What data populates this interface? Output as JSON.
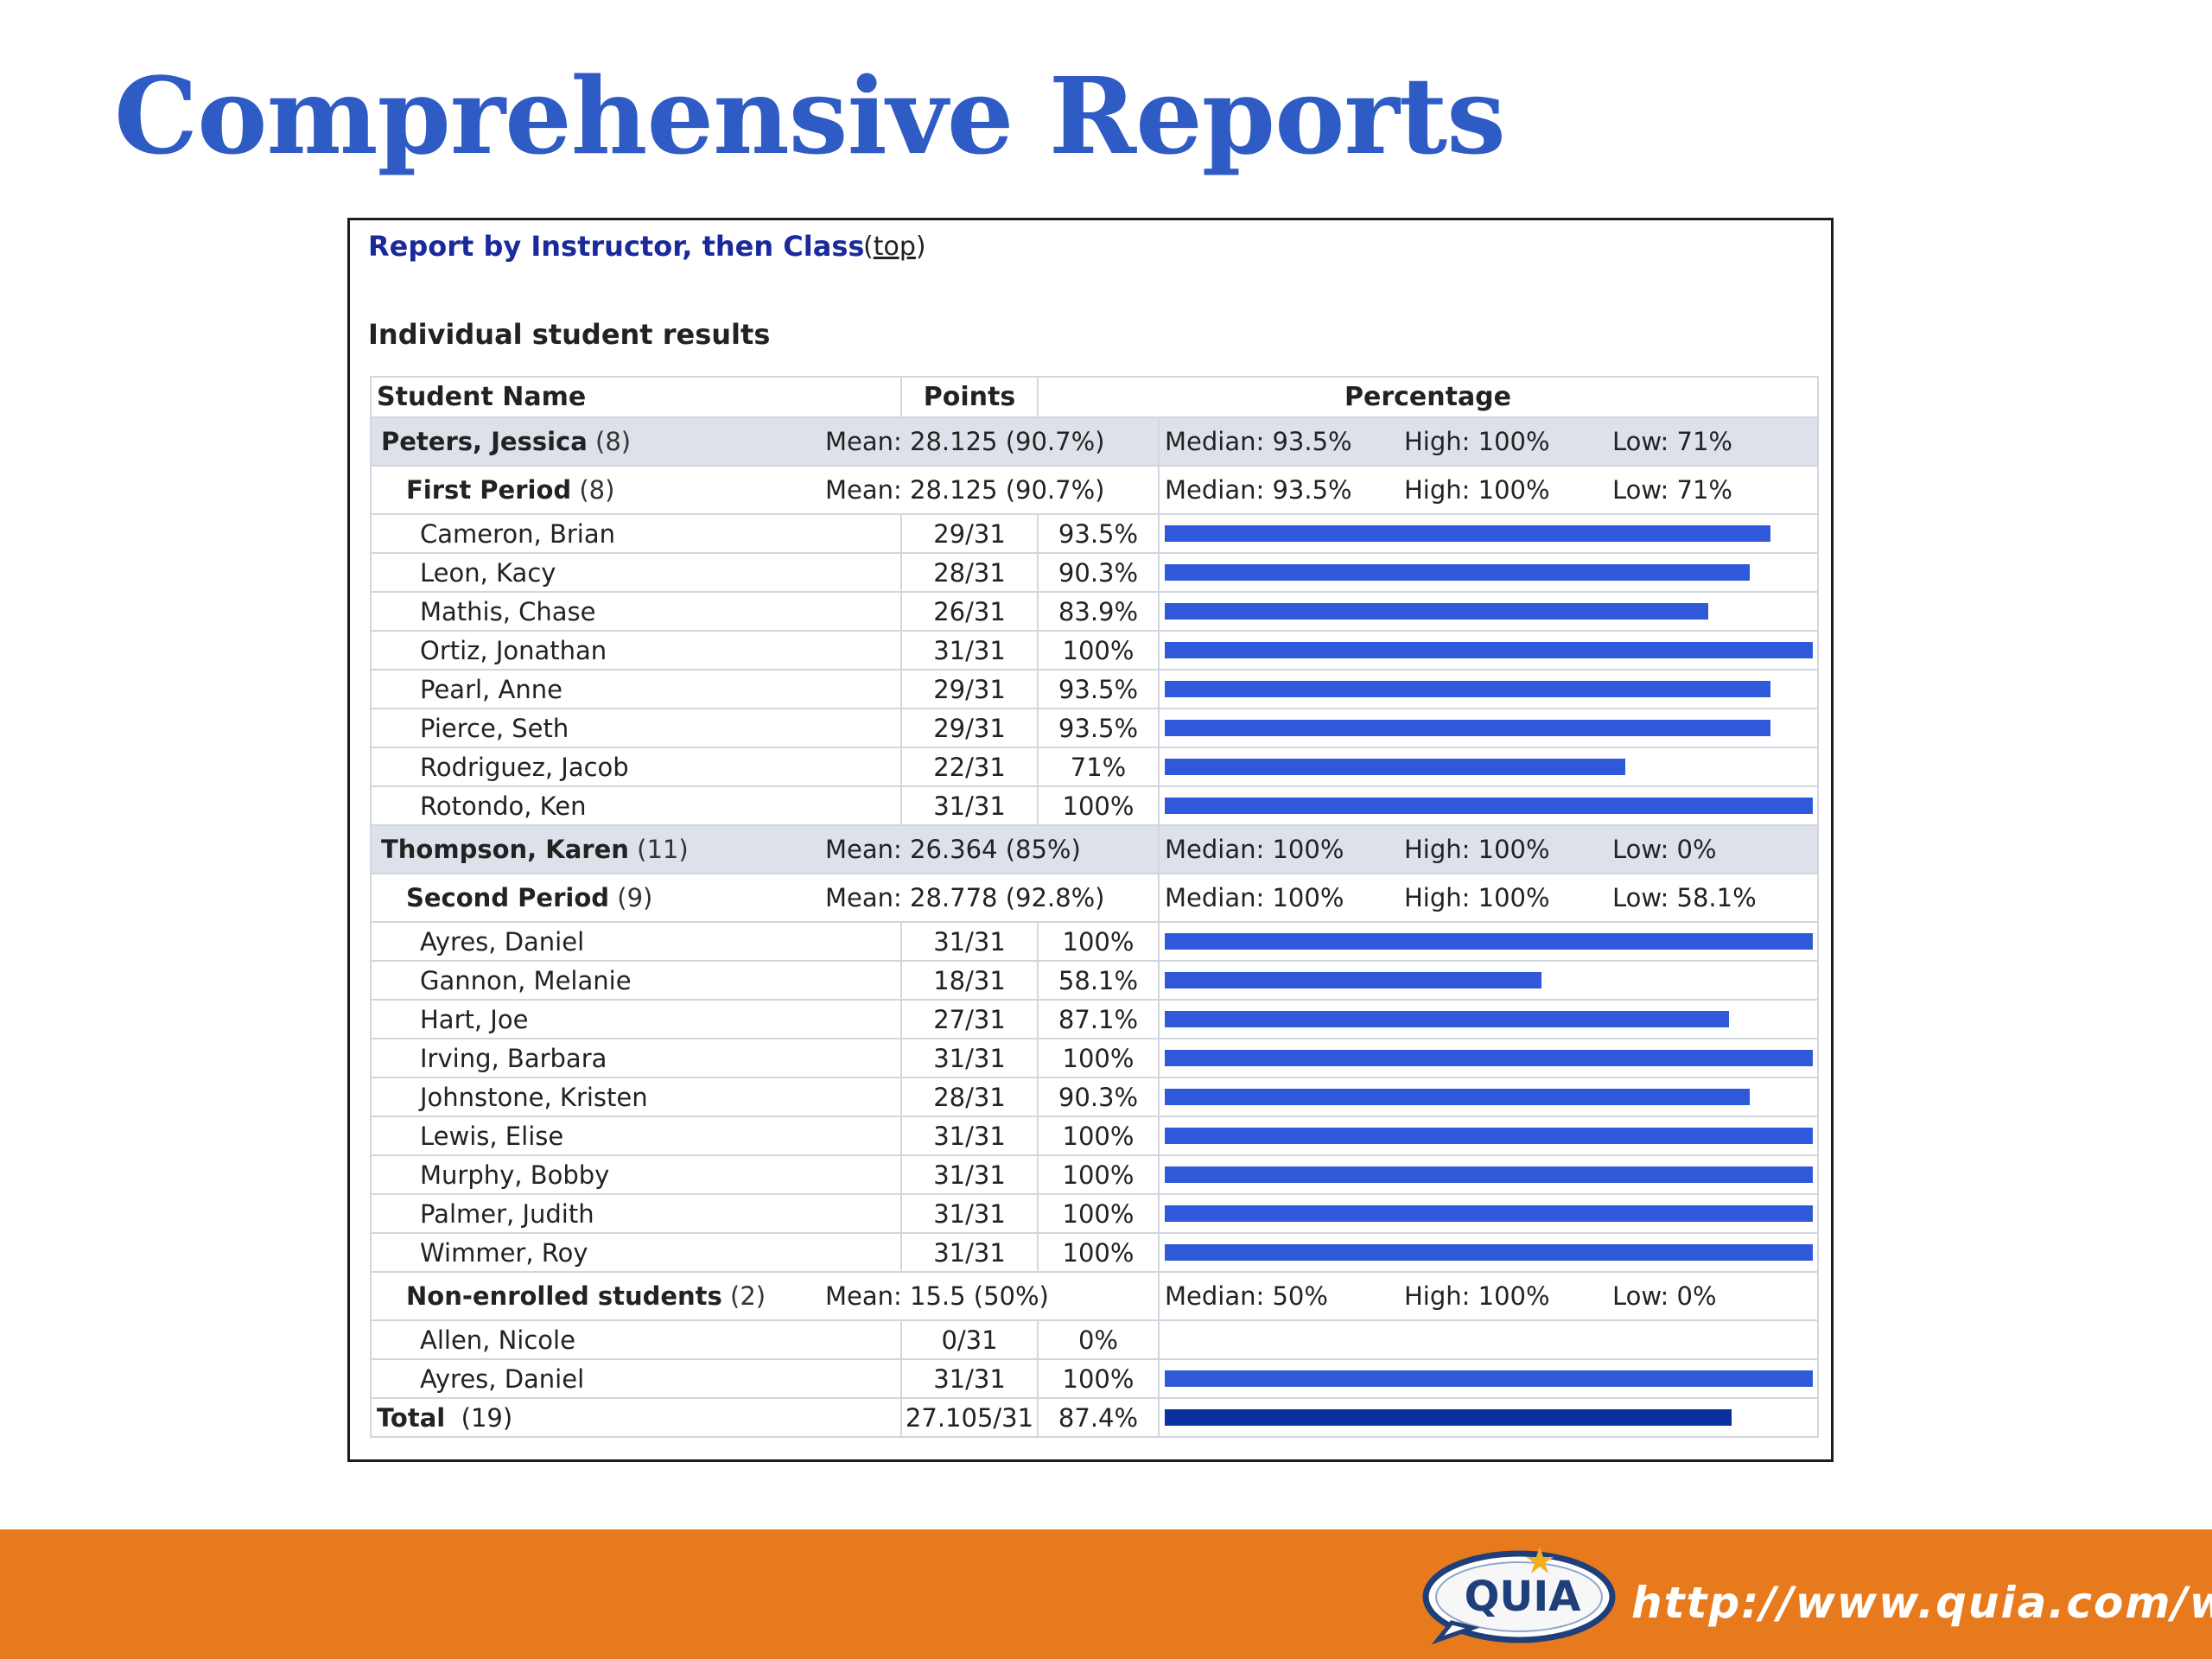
{
  "slide": {
    "title": "Comprehensive Reports"
  },
  "report": {
    "heading": "Report by Instructor, then Class",
    "top_link": "top",
    "subheading": "Individual student results",
    "columns": {
      "name": "Student Name",
      "points": "Points",
      "percentage": "Percentage"
    },
    "groups": [
      {
        "type": "instructor",
        "name": "Peters, Jessica",
        "count": "(8)",
        "mean": "Mean: 28.125 (90.7%)",
        "median": "Median: 93.5%",
        "high": "High: 100%",
        "low": "Low: 71%"
      },
      {
        "type": "class",
        "name": "First Period",
        "count": "(8)",
        "mean": "Mean: 28.125 (90.7%)",
        "median": "Median: 93.5%",
        "high": "High: 100%",
        "low": "Low: 71%"
      },
      {
        "type": "instructor",
        "name": "Thompson, Karen",
        "count": "(11)",
        "mean": "Mean: 26.364 (85%)",
        "median": "Median: 100%",
        "high": "High: 100%",
        "low": "Low: 0%"
      },
      {
        "type": "class",
        "name": "Second Period",
        "count": "(9)",
        "mean": "Mean: 28.778 (92.8%)",
        "median": "Median: 100%",
        "high": "High: 100%",
        "low": "Low: 58.1%"
      },
      {
        "type": "class",
        "name": "Non-enrolled students",
        "count": "(2)",
        "mean": "Mean: 15.5 (50%)",
        "median": "Median: 50%",
        "high": "High: 100%",
        "low": "Low: 0%"
      }
    ],
    "first_period": [
      {
        "name": "Cameron, Brian",
        "points": "29/31",
        "pct": "93.5%",
        "value": 93.5
      },
      {
        "name": "Leon, Kacy",
        "points": "28/31",
        "pct": "90.3%",
        "value": 90.3
      },
      {
        "name": "Mathis, Chase",
        "points": "26/31",
        "pct": "83.9%",
        "value": 83.9
      },
      {
        "name": "Ortiz, Jonathan",
        "points": "31/31",
        "pct": "100%",
        "value": 100
      },
      {
        "name": "Pearl, Anne",
        "points": "29/31",
        "pct": "93.5%",
        "value": 93.5
      },
      {
        "name": "Pierce, Seth",
        "points": "29/31",
        "pct": "93.5%",
        "value": 93.5
      },
      {
        "name": "Rodriguez, Jacob",
        "points": "22/31",
        "pct": "71%",
        "value": 71
      },
      {
        "name": "Rotondo, Ken",
        "points": "31/31",
        "pct": "100%",
        "value": 100
      }
    ],
    "second_period": [
      {
        "name": "Ayres, Daniel",
        "points": "31/31",
        "pct": "100%",
        "value": 100
      },
      {
        "name": "Gannon, Melanie",
        "points": "18/31",
        "pct": "58.1%",
        "value": 58.1
      },
      {
        "name": "Hart, Joe",
        "points": "27/31",
        "pct": "87.1%",
        "value": 87.1
      },
      {
        "name": "Irving, Barbara",
        "points": "31/31",
        "pct": "100%",
        "value": 100
      },
      {
        "name": "Johnstone, Kristen",
        "points": "28/31",
        "pct": "90.3%",
        "value": 90.3
      },
      {
        "name": "Lewis, Elise",
        "points": "31/31",
        "pct": "100%",
        "value": 100
      },
      {
        "name": "Murphy, Bobby",
        "points": "31/31",
        "pct": "100%",
        "value": 100
      },
      {
        "name": "Palmer, Judith",
        "points": "31/31",
        "pct": "100%",
        "value": 100
      },
      {
        "name": "Wimmer, Roy",
        "points": "31/31",
        "pct": "100%",
        "value": 100
      }
    ],
    "non_enrolled": [
      {
        "name": "Allen, Nicole",
        "points": "0/31",
        "pct": "0%",
        "value": 0
      },
      {
        "name": "Ayres, Daniel",
        "points": "31/31",
        "pct": "100%",
        "value": 100
      }
    ],
    "total": {
      "label": "Total",
      "count": "(19)",
      "points": "27.105/31",
      "pct": "87.4%",
      "value": 87.4
    }
  },
  "footer": {
    "logo_text": "QUIA",
    "url": "http://www.quia.com/web",
    "bar_color": "#e87a1e",
    "accent_color": "#2f59d8"
  }
}
